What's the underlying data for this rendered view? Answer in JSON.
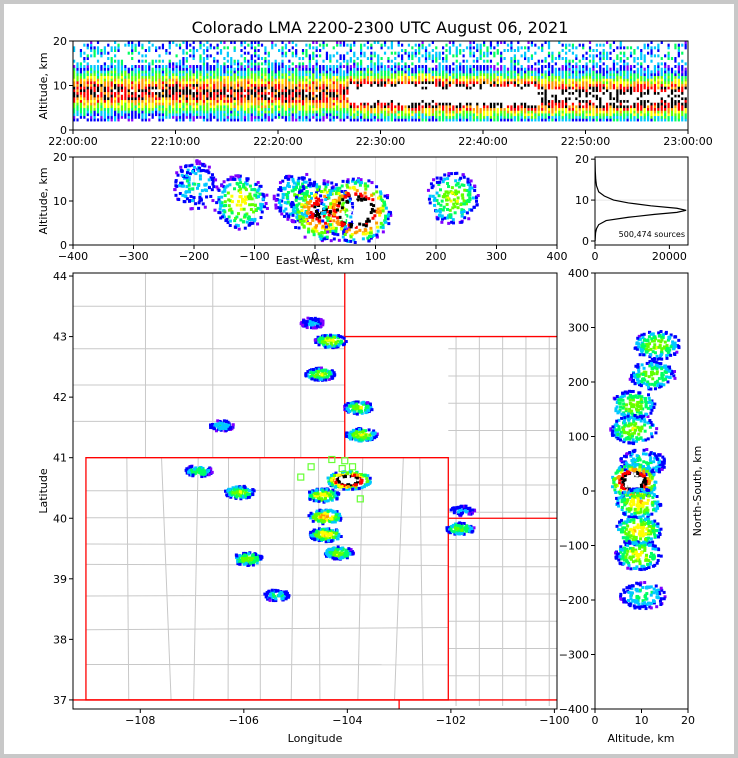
{
  "title": "Colorado LMA 2200-2300 UTC August 06, 2021",
  "colors": {
    "state_borders": "#ff0000",
    "county_borders": "#c8c8c8",
    "stations": "#66ff33",
    "density_scale": [
      "#8000ff",
      "#0000ff",
      "#00c8ff",
      "#00ff60",
      "#60ff00",
      "#ffff00",
      "#ff9900",
      "#ff0000",
      "#000000",
      "#ffffff"
    ]
  },
  "chart_data": [
    {
      "name": "altitude-vs-time",
      "type": "heatmap",
      "xlabel": "",
      "ylabel": "Altitude, km",
      "x_ticks": [
        "22:00:00",
        "22:10:00",
        "22:20:00",
        "22:30:00",
        "22:40:00",
        "22:50:00",
        "23:00:00"
      ],
      "y_ticks": [
        "0",
        "10",
        "20"
      ],
      "xlim": [
        "22:00:00",
        "23:00:00"
      ],
      "ylim": [
        0,
        20
      ],
      "core_altitude_km": [
        7,
        10
      ],
      "peak_density_window": [
        "22:27:00",
        "22:45:00"
      ]
    },
    {
      "name": "altitude-vs-east-west",
      "type": "heatmap",
      "xlabel": "East-West, km",
      "ylabel": "Altitude, km",
      "x_ticks": [
        "−400",
        "−300",
        "−200",
        "−100",
        "0",
        "100",
        "200",
        "300",
        "400"
      ],
      "y_ticks": [
        "0",
        "10",
        "20"
      ],
      "xlim": [
        -400,
        400
      ],
      "ylim": [
        0,
        20
      ],
      "cells": [
        {
          "x_km": -200,
          "alt_km": 14,
          "intensity": 0.25
        },
        {
          "x_km": -125,
          "alt_km": 10,
          "intensity": 0.5
        },
        {
          "x_km": -30,
          "alt_km": 11,
          "intensity": 0.35
        },
        {
          "x_km": 10,
          "alt_km": 8,
          "intensity": 0.8
        },
        {
          "x_km": 65,
          "alt_km": 8,
          "intensity": 1.0
        },
        {
          "x_km": 225,
          "alt_km": 11,
          "intensity": 0.45
        }
      ]
    },
    {
      "name": "altitude-histogram",
      "type": "line",
      "xlabel": "",
      "ylabel": "",
      "x_ticks": [
        "0",
        "20000"
      ],
      "y_ticks": [
        "0",
        "10",
        "20"
      ],
      "xlim": [
        0,
        25000
      ],
      "ylim": [
        0,
        20
      ],
      "annotation": "500,474 sources",
      "points": [
        {
          "count": 30,
          "alt": 0
        },
        {
          "count": 150,
          "alt": 2
        },
        {
          "count": 400,
          "alt": 3
        },
        {
          "count": 1000,
          "alt": 4
        },
        {
          "count": 3000,
          "alt": 5
        },
        {
          "count": 9000,
          "alt": 5.8
        },
        {
          "count": 16000,
          "alt": 6.5
        },
        {
          "count": 22000,
          "alt": 7
        },
        {
          "count": 24500,
          "alt": 7.5
        },
        {
          "count": 22000,
          "alt": 8
        },
        {
          "count": 15000,
          "alt": 8.6
        },
        {
          "count": 9000,
          "alt": 9.3
        },
        {
          "count": 5000,
          "alt": 10
        },
        {
          "count": 2500,
          "alt": 11
        },
        {
          "count": 1000,
          "alt": 12
        },
        {
          "count": 400,
          "alt": 13.5
        },
        {
          "count": 200,
          "alt": 15
        },
        {
          "count": 80,
          "alt": 17
        },
        {
          "count": 30,
          "alt": 19
        },
        {
          "count": 10,
          "alt": 20
        }
      ]
    },
    {
      "name": "plan-view-map",
      "type": "heatmap",
      "xlabel": "Longitude",
      "ylabel": "Latitude",
      "x_ticks": [
        "−108",
        "−106",
        "−104",
        "−102",
        "−100"
      ],
      "y_ticks": [
        "37",
        "38",
        "39",
        "40",
        "41",
        "42",
        "43",
        "44"
      ],
      "xlim": [
        -109.3,
        -99.95
      ],
      "ylim": [
        36.85,
        44.05
      ],
      "cells": [
        {
          "lon": -104.35,
          "lat": 42.95,
          "intensity": 0.5
        },
        {
          "lon": -104.7,
          "lat": 43.25,
          "intensity": 0.2
        },
        {
          "lon": -104.55,
          "lat": 42.4,
          "intensity": 0.45
        },
        {
          "lon": -103.8,
          "lat": 41.85,
          "intensity": 0.45
        },
        {
          "lon": -103.75,
          "lat": 41.4,
          "intensity": 0.5
        },
        {
          "lon": -106.45,
          "lat": 41.55,
          "intensity": 0.25
        },
        {
          "lon": -106.9,
          "lat": 40.8,
          "intensity": 0.35
        },
        {
          "lon": -106.1,
          "lat": 40.45,
          "intensity": 0.45
        },
        {
          "lon": -104.0,
          "lat": 40.65,
          "intensity": 1.0
        },
        {
          "lon": -104.5,
          "lat": 40.4,
          "intensity": 0.55
        },
        {
          "lon": -104.45,
          "lat": 40.05,
          "intensity": 0.6
        },
        {
          "lon": -104.45,
          "lat": 39.75,
          "intensity": 0.55
        },
        {
          "lon": -104.2,
          "lat": 39.45,
          "intensity": 0.45
        },
        {
          "lon": -105.95,
          "lat": 39.35,
          "intensity": 0.45
        },
        {
          "lon": -105.4,
          "lat": 38.75,
          "intensity": 0.3
        },
        {
          "lon": -101.85,
          "lat": 39.85,
          "intensity": 0.4
        },
        {
          "lon": -101.8,
          "lat": 40.15,
          "intensity": 0.2
        }
      ],
      "stations": [
        {
          "lon": -104.3,
          "lat": 40.97
        },
        {
          "lon": -104.05,
          "lat": 40.95
        },
        {
          "lon": -103.9,
          "lat": 40.85
        },
        {
          "lon": -104.1,
          "lat": 40.82
        },
        {
          "lon": -104.7,
          "lat": 40.85
        },
        {
          "lon": -104.9,
          "lat": 40.68
        },
        {
          "lon": -103.75,
          "lat": 40.32
        }
      ]
    },
    {
      "name": "north-south-vs-altitude",
      "type": "heatmap",
      "xlabel": "Altitude, km",
      "ylabel": "North-South, km",
      "x_ticks": [
        "0",
        "10",
        "20"
      ],
      "y_ticks": [
        "−400",
        "−300",
        "−200",
        "−100",
        "0",
        "100",
        "200",
        "300",
        "400"
      ],
      "xlim": [
        0,
        20
      ],
      "ylim": [
        -400,
        400
      ],
      "cells": [
        {
          "ns_km": 270,
          "alt_km": 13,
          "intensity": 0.45
        },
        {
          "ns_km": 215,
          "alt_km": 12,
          "intensity": 0.4
        },
        {
          "ns_km": 160,
          "alt_km": 8,
          "intensity": 0.45
        },
        {
          "ns_km": 115,
          "alt_km": 8,
          "intensity": 0.45
        },
        {
          "ns_km": 55,
          "alt_km": 10,
          "intensity": 0.3
        },
        {
          "ns_km": 20,
          "alt_km": 8,
          "intensity": 1.0
        },
        {
          "ns_km": -20,
          "alt_km": 9,
          "intensity": 0.55
        },
        {
          "ns_km": -70,
          "alt_km": 9,
          "intensity": 0.55
        },
        {
          "ns_km": -115,
          "alt_km": 9,
          "intensity": 0.5
        },
        {
          "ns_km": -190,
          "alt_km": 10,
          "intensity": 0.3
        }
      ]
    }
  ]
}
